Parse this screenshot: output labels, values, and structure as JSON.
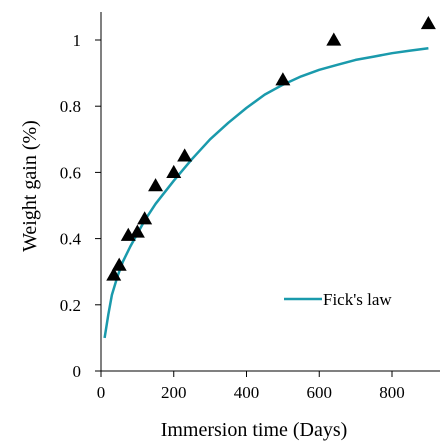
{
  "chart_data": {
    "type": "scatter",
    "xlabel": "Immersion time (Days)",
    "ylabel": "Weight gain (%)",
    "xlim": [
      0,
      900
    ],
    "ylim": [
      0,
      1.05
    ],
    "xticks": [
      0,
      200,
      400,
      600,
      800
    ],
    "yticks": [
      0,
      0.2,
      0.4,
      0.6,
      0.8,
      1
    ],
    "xtick_labels": [
      "0",
      "200",
      "400",
      "600",
      "800"
    ],
    "ytick_labels": [
      "0",
      "0.2",
      "0.4",
      "0.6",
      "0.8",
      "1"
    ],
    "grid": false,
    "legend_position": "bottom-right",
    "series": [
      {
        "marker": "triangle",
        "color": "#000000",
        "points": [
          {
            "x": 35,
            "y": 0.29
          },
          {
            "x": 50,
            "y": 0.32
          },
          {
            "x": 75,
            "y": 0.41
          },
          {
            "x": 100,
            "y": 0.42
          },
          {
            "x": 120,
            "y": 0.46
          },
          {
            "x": 150,
            "y": 0.56
          },
          {
            "x": 200,
            "y": 0.6
          },
          {
            "x": 230,
            "y": 0.65
          },
          {
            "x": 500,
            "y": 0.88
          },
          {
            "x": 640,
            "y": 1.0
          },
          {
            "x": 900,
            "y": 1.05
          }
        ]
      },
      {
        "name": "Fick's law",
        "type": "line",
        "color": "#1a9aac",
        "points": [
          {
            "x": 10,
            "y": 0.1
          },
          {
            "x": 20,
            "y": 0.17
          },
          {
            "x": 30,
            "y": 0.23
          },
          {
            "x": 45,
            "y": 0.285
          },
          {
            "x": 60,
            "y": 0.33
          },
          {
            "x": 80,
            "y": 0.375
          },
          {
            "x": 100,
            "y": 0.415
          },
          {
            "x": 120,
            "y": 0.455
          },
          {
            "x": 150,
            "y": 0.505
          },
          {
            "x": 200,
            "y": 0.575
          },
          {
            "x": 250,
            "y": 0.64
          },
          {
            "x": 300,
            "y": 0.7
          },
          {
            "x": 350,
            "y": 0.75
          },
          {
            "x": 400,
            "y": 0.795
          },
          {
            "x": 450,
            "y": 0.835
          },
          {
            "x": 500,
            "y": 0.865
          },
          {
            "x": 550,
            "y": 0.89
          },
          {
            "x": 600,
            "y": 0.91
          },
          {
            "x": 650,
            "y": 0.925
          },
          {
            "x": 700,
            "y": 0.94
          },
          {
            "x": 750,
            "y": 0.95
          },
          {
            "x": 800,
            "y": 0.96
          },
          {
            "x": 850,
            "y": 0.968
          },
          {
            "x": 900,
            "y": 0.975
          }
        ]
      }
    ]
  }
}
